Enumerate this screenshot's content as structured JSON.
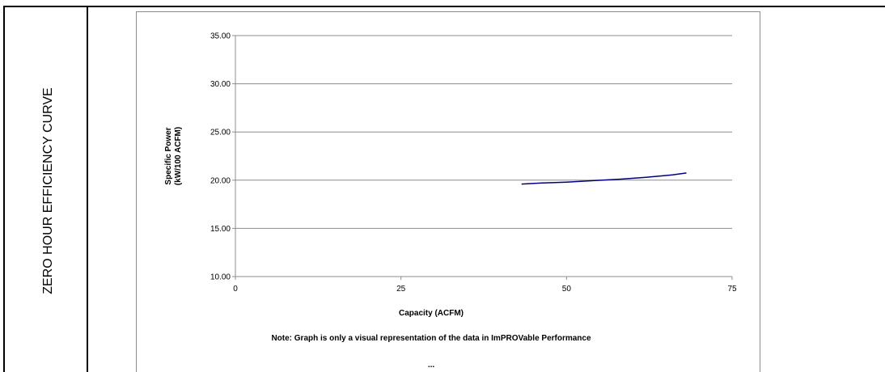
{
  "side_label": "ZERO HOUR EFFICIENCY CURVE",
  "chart_data": {
    "type": "line",
    "title": "",
    "xlabel": "Capacity (ACFM)",
    "ylabel_lines": [
      "Specific Power",
      "(kW/100 ACFM)"
    ],
    "xlim": [
      0,
      75
    ],
    "ylim": [
      10,
      35
    ],
    "x_ticks": [
      "0",
      "25",
      "50",
      "75"
    ],
    "y_ticks": [
      "10.00",
      "15.00",
      "20.00",
      "25.00",
      "30.00",
      "35.00"
    ],
    "grid": "horizontal",
    "line_color": "#000080",
    "series": [
      {
        "x": [
          43.2,
          46,
          50,
          54,
          58,
          62,
          66,
          68.1
        ],
        "y": [
          19.6,
          19.7,
          19.8,
          19.95,
          20.1,
          20.3,
          20.55,
          20.75
        ]
      }
    ],
    "note": "Note:  Graph is only a visual representation of the data in ImPROVable Performance",
    "ellipsis": "..."
  }
}
